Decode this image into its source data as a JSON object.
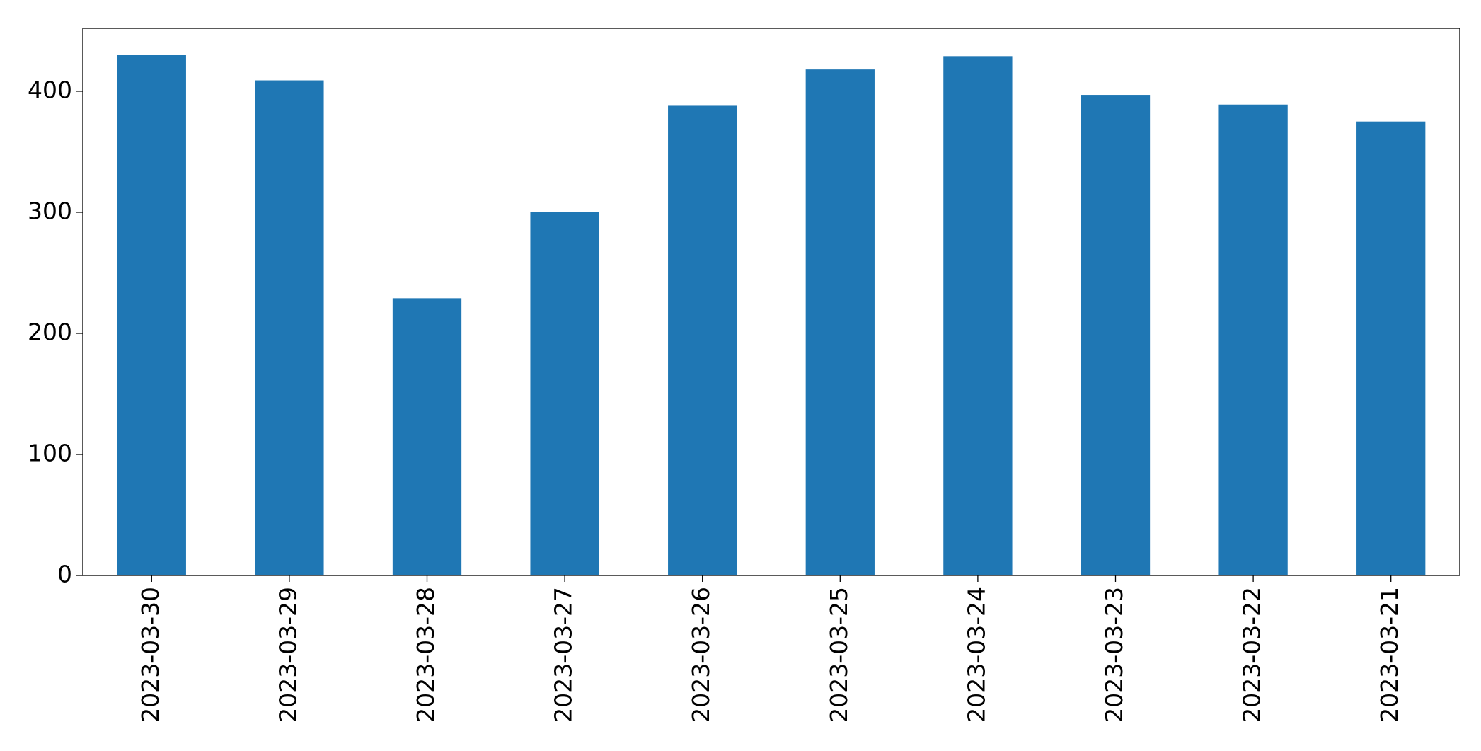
{
  "chart_data": {
    "type": "bar",
    "categories": [
      "2023-03-30",
      "2023-03-29",
      "2023-03-28",
      "2023-03-27",
      "2023-03-26",
      "2023-03-25",
      "2023-03-24",
      "2023-03-23",
      "2023-03-22",
      "2023-03-21"
    ],
    "values": [
      430,
      409,
      229,
      300,
      388,
      418,
      429,
      397,
      389,
      375
    ],
    "color": "#1f77b4",
    "ylim": [
      0,
      452
    ],
    "yticks": [
      0,
      100,
      200,
      300,
      400
    ],
    "grid": false
  }
}
